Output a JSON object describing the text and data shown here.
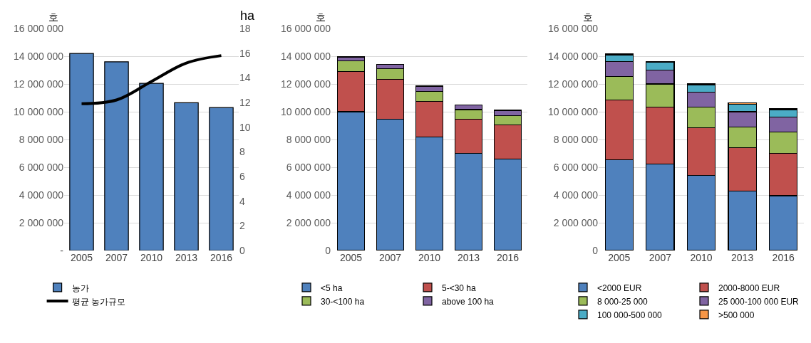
{
  "chart_data": [
    {
      "type": "bar",
      "categories": [
        "2005",
        "2007",
        "2010",
        "2013",
        "2016"
      ],
      "ylabel": "호",
      "y2label": "ha",
      "legend": "bottom",
      "grid": "y",
      "ylim": [
        0,
        16000000
      ],
      "yticks": [
        {
          "value": 0,
          "label": "-"
        },
        {
          "value": 2000000,
          "label": "2 000 000"
        },
        {
          "value": 4000000,
          "label": "4 000 000"
        },
        {
          "value": 6000000,
          "label": "6 000 000"
        },
        {
          "value": 8000000,
          "label": "8 000 000"
        },
        {
          "value": 10000000,
          "label": "10 000 000"
        },
        {
          "value": 12000000,
          "label": "12 000 000"
        },
        {
          "value": 14000000,
          "label": "14 000 000"
        },
        {
          "value": 16000000,
          "label": "16 000 000"
        }
      ],
      "y2lim": [
        0,
        18
      ],
      "y2ticks": [
        0,
        2,
        4,
        6,
        8,
        10,
        12,
        14,
        16,
        18
      ],
      "series": [
        {
          "name": "농가",
          "color": "#4f81bd",
          "values": [
            14200000,
            13600000,
            12050000,
            10650000,
            10300000
          ]
        },
        {
          "name": "평균 농가규모",
          "type": "line",
          "axis": "y2",
          "color": "#000000",
          "values": [
            11.9,
            12.2,
            13.7,
            15.2,
            15.8
          ]
        }
      ]
    },
    {
      "type": "bar",
      "stacked": true,
      "categories": [
        "2005",
        "2007",
        "2010",
        "2013",
        "2016"
      ],
      "ylabel": "호",
      "legend": "bottom",
      "grid": "y",
      "ylim": [
        0,
        16000000
      ],
      "yticks": [
        0,
        {
          "value": 2000000,
          "label": "2 000 000"
        },
        {
          "value": 4000000,
          "label": "4 000 000"
        },
        {
          "value": 6000000,
          "label": "6 000 000"
        },
        {
          "value": 8000000,
          "label": "8 000 000"
        },
        {
          "value": 10000000,
          "label": "10 000 000"
        },
        {
          "value": 12000000,
          "label": "12 000 000"
        },
        {
          "value": 14000000,
          "label": "14 000 000"
        },
        {
          "value": 16000000,
          "label": "16 000 000"
        }
      ],
      "series": [
        {
          "name": "<5 ha",
          "color": "#4f81bd",
          "values": [
            10000000,
            9450000,
            8200000,
            7000000,
            6600000
          ]
        },
        {
          "name": "5-<30 ha",
          "color": "#c0504d",
          "values": [
            2900000,
            2900000,
            2550000,
            2450000,
            2450000
          ]
        },
        {
          "name": "30-<100 ha",
          "color": "#9bbb59",
          "values": [
            750000,
            750000,
            700000,
            700000,
            650000
          ]
        },
        {
          "name": "above 100 ha",
          "color": "#8064a2",
          "values": [
            300000,
            300000,
            400000,
            350000,
            400000
          ]
        }
      ]
    },
    {
      "type": "bar",
      "stacked": true,
      "categories": [
        "2005",
        "2007",
        "2010",
        "2013",
        "2016"
      ],
      "ylabel": "호",
      "legend": "bottom",
      "grid": "y",
      "ylim": [
        0,
        16000000
      ],
      "yticks": [
        0,
        {
          "value": 2000000,
          "label": "2 000 000"
        },
        {
          "value": 4000000,
          "label": "4 000 000"
        },
        {
          "value": 6000000,
          "label": "6 000 000"
        },
        {
          "value": 8000000,
          "label": "8 000 000"
        },
        {
          "value": 10000000,
          "label": "10 000 000"
        },
        {
          "value": 12000000,
          "label": "12 000 000"
        },
        {
          "value": 14000000,
          "label": "14 000 000"
        },
        {
          "value": 16000000,
          "label": "16 000 000"
        }
      ],
      "series": [
        {
          "name": "<2000 EUR",
          "color": "#4f81bd",
          "values": [
            6550000,
            6250000,
            5400000,
            4300000,
            3950000
          ]
        },
        {
          "name": "2000-8000 EUR",
          "color": "#c0504d",
          "values": [
            4300000,
            4100000,
            3450000,
            3100000,
            3050000
          ]
        },
        {
          "name": "8 000-25 000",
          "color": "#9bbb59",
          "values": [
            1700000,
            1650000,
            1500000,
            1500000,
            1550000
          ]
        },
        {
          "name": "25 000-100 000 EUR",
          "color": "#8064a2",
          "values": [
            1050000,
            1000000,
            1050000,
            1100000,
            1050000
          ]
        },
        {
          "name": "100 000-500 000",
          "color": "#4bacc6",
          "values": [
            500000,
            550000,
            550000,
            550000,
            550000
          ]
        },
        {
          "name": ">500 000",
          "color": "#f79646",
          "values": [
            60000,
            70000,
            80000,
            100000,
            100000
          ]
        }
      ]
    }
  ]
}
